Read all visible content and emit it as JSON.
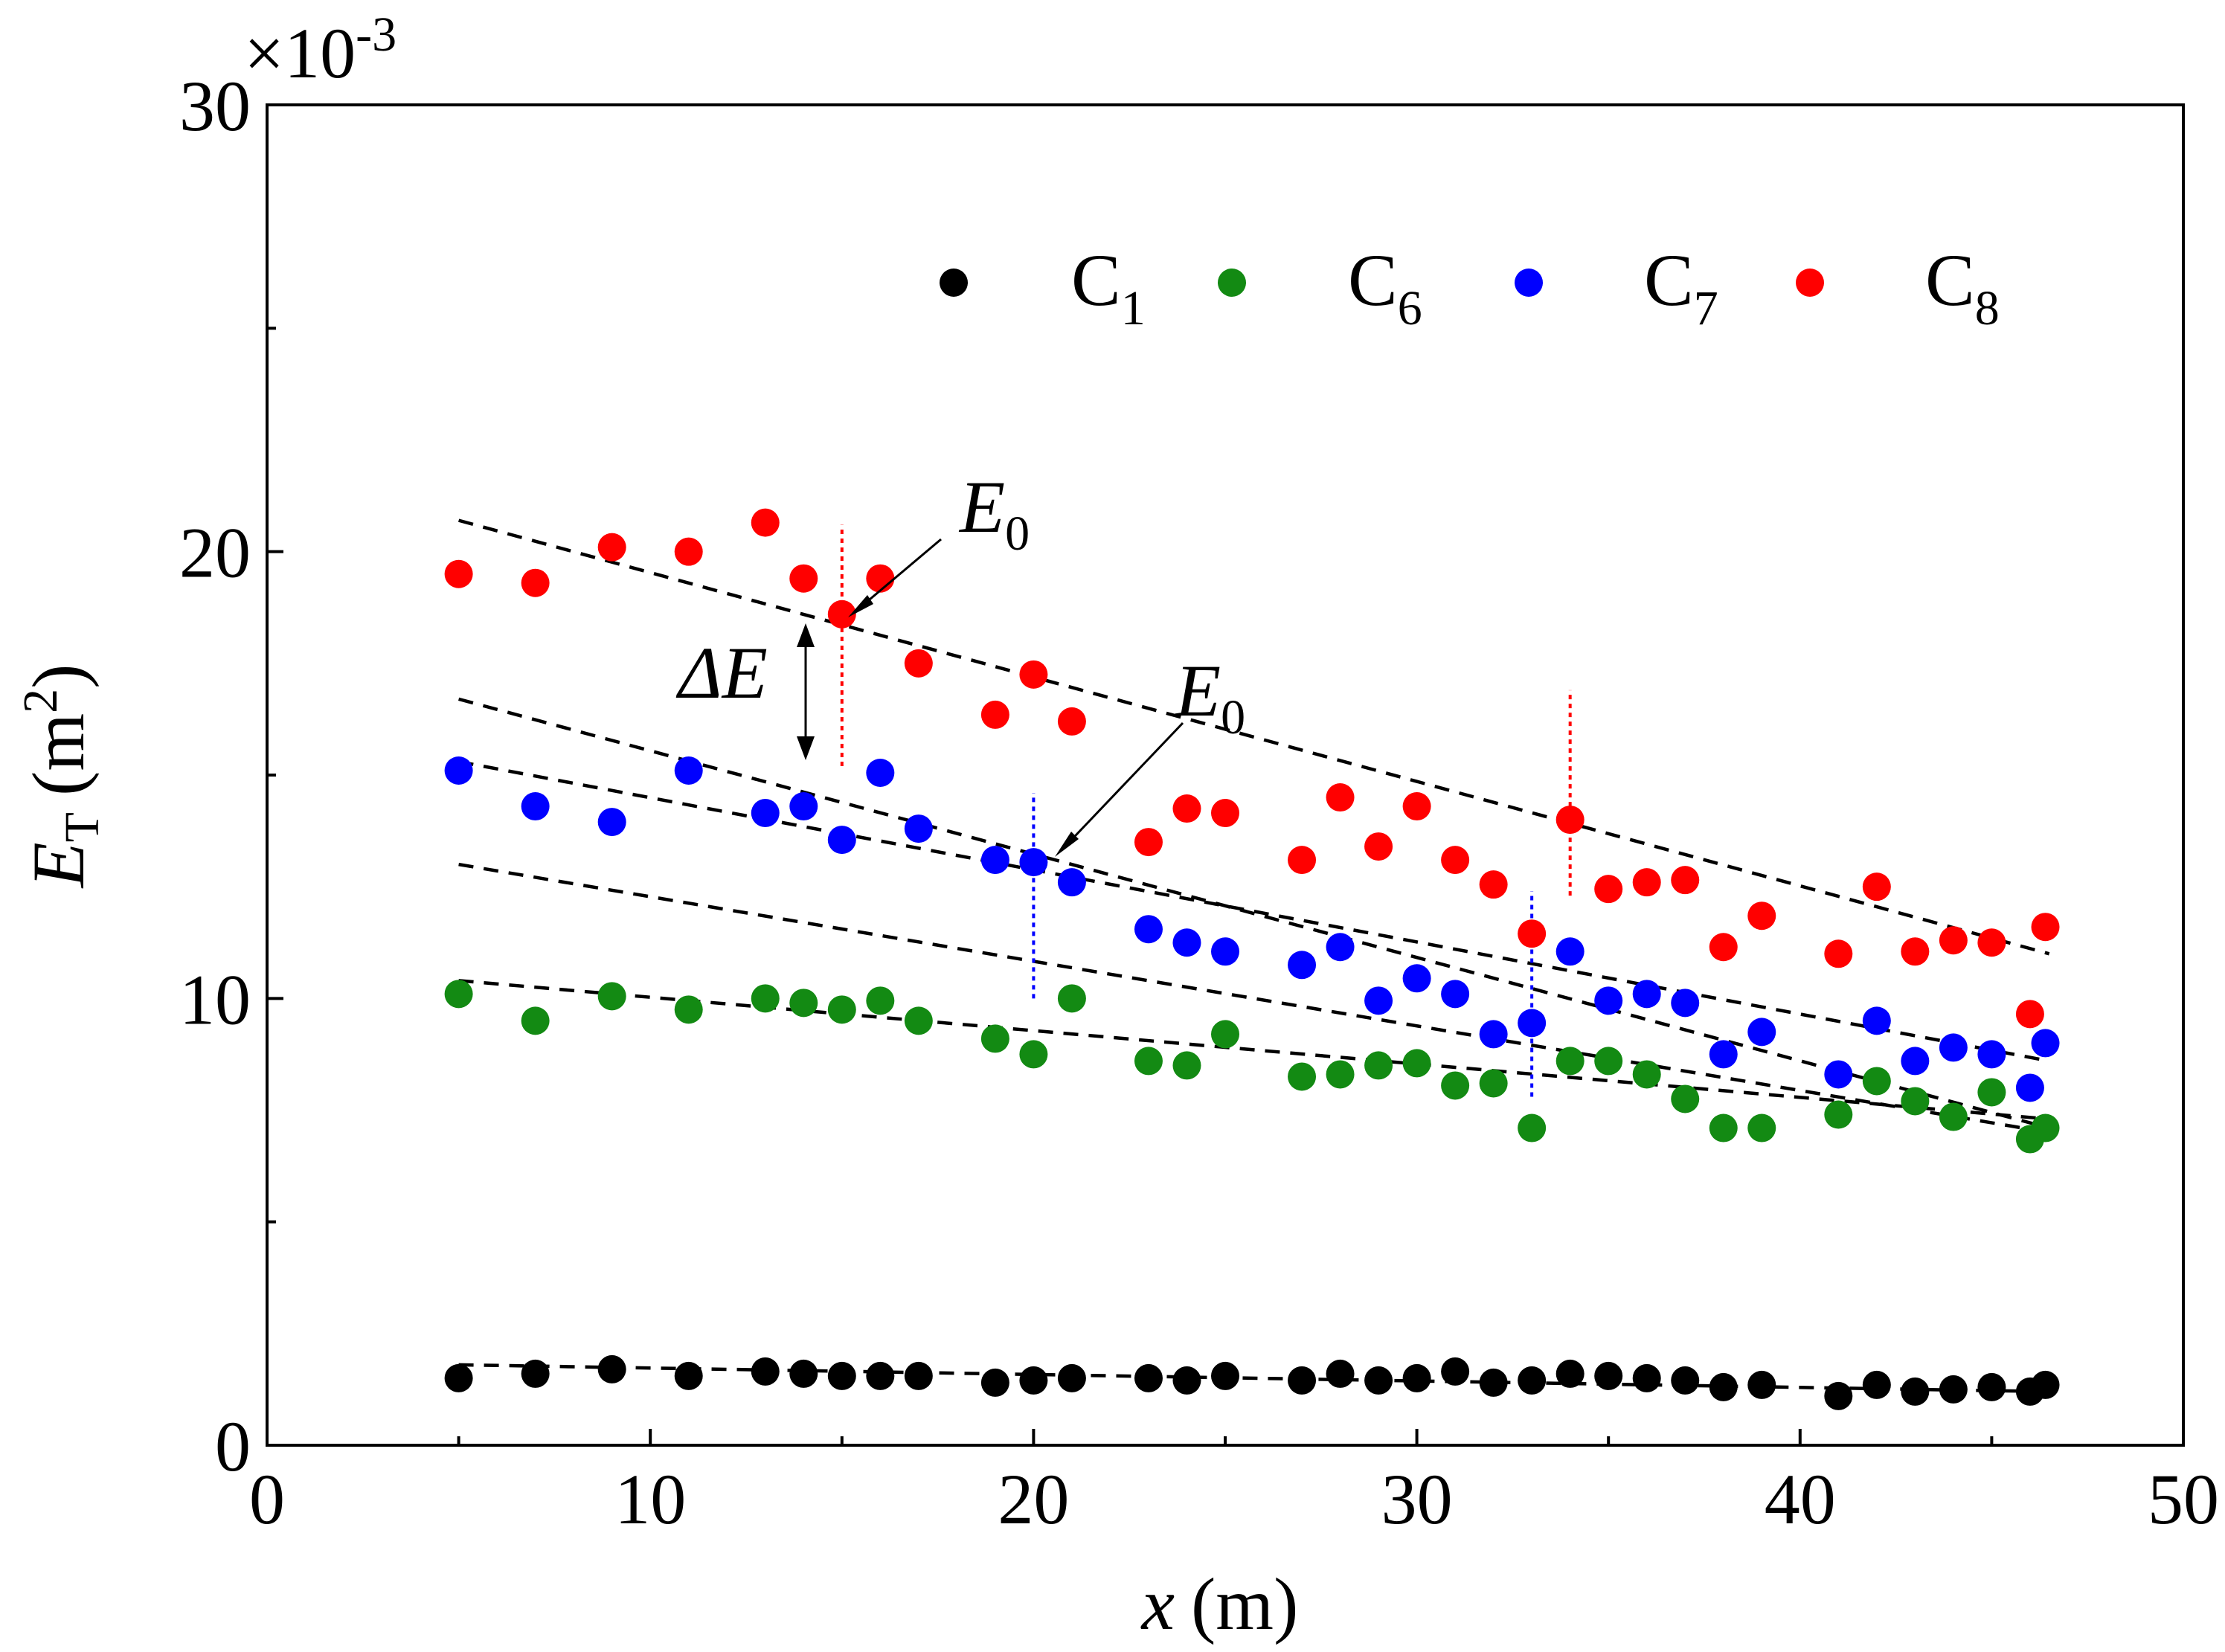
{
  "chart_data": {
    "type": "scatter",
    "title": "",
    "xlabel": "x (m)",
    "xlabel_var": "x",
    "xlabel_unit": "(m)",
    "ylabel_var": "E",
    "ylabel_sub": "T",
    "ylabel_unit_pre": "(m",
    "ylabel_unit_sup": "2",
    "ylabel_unit_post": ")",
    "y_multiplier_pre": "×10",
    "y_multiplier_sup": "-3",
    "xlim": [
      0,
      50
    ],
    "ylim": [
      0,
      30
    ],
    "x_ticks": [
      0,
      10,
      20,
      30,
      40,
      50
    ],
    "x_tick_labels": [
      "0",
      "10",
      "20",
      "30",
      "40",
      "50"
    ],
    "y_ticks": [
      0,
      10,
      20,
      30
    ],
    "y_tick_labels": [
      "0",
      "10",
      "20",
      "30"
    ],
    "y_minor_ticks": [
      5,
      15,
      25
    ],
    "x_minor_ticks": [
      5,
      15,
      25,
      35,
      45
    ],
    "grid": false,
    "legend_position": "top-right",
    "series": [
      {
        "name": "C1",
        "label_main": "C",
        "label_sub": "1",
        "color": "#000000",
        "points": [
          [
            5,
            1.5
          ],
          [
            7,
            1.6
          ],
          [
            9,
            1.7
          ],
          [
            11,
            1.55
          ],
          [
            13,
            1.65
          ],
          [
            14,
            1.6
          ],
          [
            15,
            1.55
          ],
          [
            16,
            1.55
          ],
          [
            17,
            1.55
          ],
          [
            19,
            1.4
          ],
          [
            20,
            1.45
          ],
          [
            21,
            1.5
          ],
          [
            23,
            1.5
          ],
          [
            24,
            1.45
          ],
          [
            25,
            1.55
          ],
          [
            27,
            1.45
          ],
          [
            28,
            1.6
          ],
          [
            29,
            1.45
          ],
          [
            30,
            1.5
          ],
          [
            31,
            1.65
          ],
          [
            32,
            1.4
          ],
          [
            33,
            1.45
          ],
          [
            34,
            1.6
          ],
          [
            35,
            1.55
          ],
          [
            36,
            1.5
          ],
          [
            37,
            1.45
          ],
          [
            38,
            1.3
          ],
          [
            39,
            1.35
          ],
          [
            41,
            1.1
          ],
          [
            42,
            1.35
          ],
          [
            43,
            1.2
          ],
          [
            44,
            1.25
          ],
          [
            45,
            1.3
          ],
          [
            46,
            1.2
          ],
          [
            46.4,
            1.35
          ]
        ]
      },
      {
        "name": "C6",
        "label_main": "C",
        "label_sub": "6",
        "color": "#138a13",
        "points": [
          [
            5,
            10.1
          ],
          [
            7,
            9.5
          ],
          [
            9,
            10.05
          ],
          [
            11,
            9.75
          ],
          [
            13,
            10.0
          ],
          [
            14,
            9.9
          ],
          [
            15,
            9.75
          ],
          [
            16,
            9.95
          ],
          [
            17,
            9.5
          ],
          [
            19,
            9.1
          ],
          [
            20,
            8.75
          ],
          [
            21,
            10.0
          ],
          [
            23,
            8.6
          ],
          [
            24,
            8.5
          ],
          [
            25,
            9.2
          ],
          [
            27,
            8.25
          ],
          [
            28,
            8.3
          ],
          [
            29,
            8.5
          ],
          [
            30,
            8.55
          ],
          [
            31,
            8.05
          ],
          [
            32,
            8.1
          ],
          [
            33,
            7.1
          ],
          [
            34,
            8.6
          ],
          [
            35,
            8.6
          ],
          [
            36,
            8.3
          ],
          [
            37,
            7.75
          ],
          [
            38,
            7.1
          ],
          [
            39,
            7.1
          ],
          [
            41,
            7.4
          ],
          [
            42,
            8.15
          ],
          [
            43,
            7.7
          ],
          [
            44,
            7.35
          ],
          [
            45,
            7.9
          ],
          [
            46,
            6.85
          ],
          [
            46.4,
            7.1
          ]
        ]
      },
      {
        "name": "C7",
        "label_main": "C",
        "label_sub": "7",
        "color": "#0000ff",
        "points": [
          [
            5,
            15.1
          ],
          [
            7,
            14.3
          ],
          [
            9,
            13.95
          ],
          [
            11,
            15.1
          ],
          [
            13,
            14.15
          ],
          [
            14,
            14.3
          ],
          [
            15,
            13.55
          ],
          [
            16,
            15.05
          ],
          [
            17,
            13.8
          ],
          [
            19,
            13.1
          ],
          [
            20,
            13.05
          ],
          [
            21,
            12.6
          ],
          [
            23,
            11.55
          ],
          [
            24,
            11.25
          ],
          [
            25,
            11.05
          ],
          [
            27,
            10.75
          ],
          [
            28,
            11.15
          ],
          [
            29,
            9.95
          ],
          [
            30,
            10.45
          ],
          [
            31,
            10.1
          ],
          [
            32,
            9.2
          ],
          [
            33,
            9.45
          ],
          [
            34,
            11.05
          ],
          [
            35,
            9.95
          ],
          [
            36,
            10.1
          ],
          [
            37,
            9.9
          ],
          [
            38,
            8.75
          ],
          [
            39,
            9.25
          ],
          [
            41,
            8.3
          ],
          [
            42,
            9.5
          ],
          [
            43,
            8.6
          ],
          [
            44,
            8.9
          ],
          [
            45,
            8.75
          ],
          [
            46,
            8.0
          ],
          [
            46.4,
            9.0
          ]
        ]
      },
      {
        "name": "C8",
        "label_main": "C",
        "label_sub": "8",
        "color": "#ff0000",
        "points": [
          [
            5,
            19.5
          ],
          [
            7,
            19.3
          ],
          [
            9,
            20.1
          ],
          [
            11,
            20.0
          ],
          [
            13,
            20.65
          ],
          [
            14,
            19.4
          ],
          [
            15,
            18.6
          ],
          [
            16,
            19.4
          ],
          [
            17,
            17.5
          ],
          [
            19,
            16.35
          ],
          [
            20,
            17.25
          ],
          [
            21,
            16.2
          ],
          [
            23,
            13.5
          ],
          [
            24,
            14.25
          ],
          [
            25,
            14.15
          ],
          [
            27,
            13.1
          ],
          [
            28,
            14.5
          ],
          [
            29,
            13.4
          ],
          [
            30,
            14.3
          ],
          [
            31,
            13.1
          ],
          [
            32,
            12.55
          ],
          [
            33,
            11.45
          ],
          [
            34,
            14.0
          ],
          [
            35,
            12.45
          ],
          [
            36,
            12.6
          ],
          [
            37,
            12.65
          ],
          [
            38,
            11.15
          ],
          [
            39,
            11.85
          ],
          [
            41,
            11.0
          ],
          [
            42,
            12.5
          ],
          [
            43,
            11.05
          ],
          [
            44,
            11.3
          ],
          [
            45,
            11.25
          ],
          [
            46,
            9.65
          ],
          [
            46.4,
            11.6
          ]
        ]
      }
    ],
    "trendlines": [
      {
        "from": [
          5,
          20.7
        ],
        "to": [
          46.5,
          11.0
        ]
      },
      {
        "from": [
          5,
          16.7
        ],
        "to": [
          46.5,
          7.1
        ]
      },
      {
        "from": [
          5,
          15.3
        ],
        "to": [
          46.5,
          8.6
        ]
      },
      {
        "from": [
          5,
          13.0
        ],
        "to": [
          46.5,
          7.0
        ]
      },
      {
        "from": [
          5,
          10.4
        ],
        "to": [
          46.5,
          7.3
        ]
      },
      {
        "from": [
          5,
          1.8
        ],
        "to": [
          46.5,
          1.2
        ]
      }
    ],
    "vertical_markers": [
      {
        "x": 15,
        "y_from": 15.2,
        "y_to": 20.6,
        "color": "#ff0000"
      },
      {
        "x": 20,
        "y_from": 10.0,
        "y_to": 14.6,
        "color": "#0000ff"
      },
      {
        "x": 33,
        "y_from": 7.8,
        "y_to": 12.4,
        "color": "#0000ff"
      },
      {
        "x": 34,
        "y_from": 12.3,
        "y_to": 16.9,
        "color": "#ff0000"
      }
    ],
    "annotations": {
      "e0_main": "E",
      "e0_sub": "0",
      "delta_e": "ΔE"
    }
  }
}
